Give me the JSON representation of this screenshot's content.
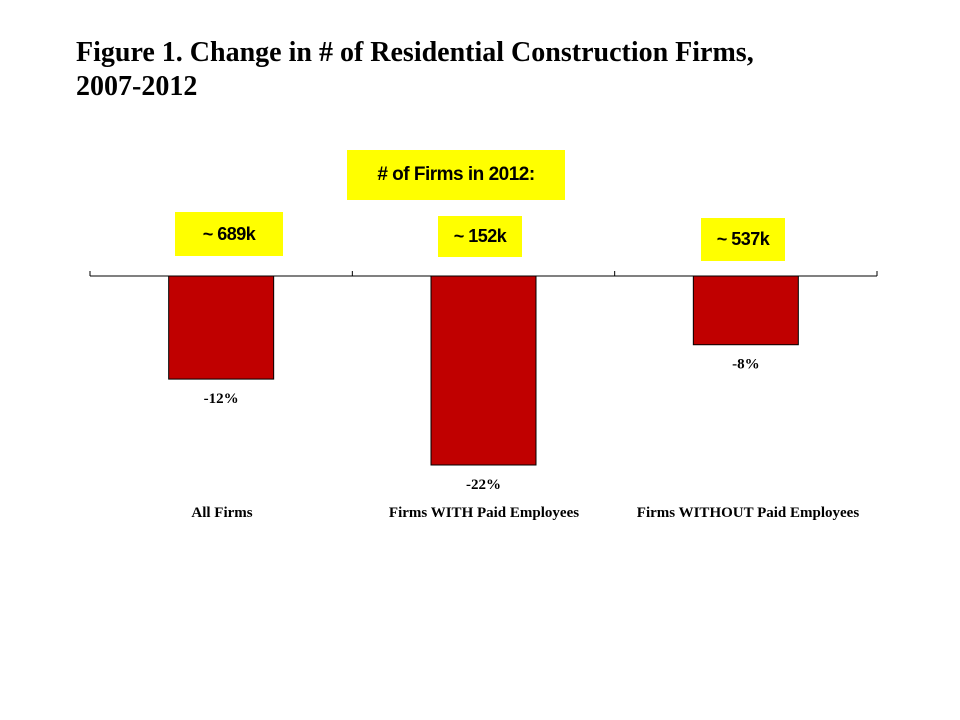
{
  "title_line1": "Figure 1.  Change in # of Residential Construction Firms,",
  "title_line2": "2007-2012",
  "callouts": {
    "header": "# of Firms in 2012:",
    "values": [
      "~ 689k",
      "~ 152k",
      "~ 537k"
    ]
  },
  "colors": {
    "bar": "#c00000",
    "callout": "#ffff00"
  },
  "chart_data": {
    "type": "bar",
    "categories": [
      "All Firms",
      "Firms WITH Paid Employees",
      "Firms WITHOUT Paid Employees"
    ],
    "values": [
      -12,
      -22,
      -8
    ],
    "data_labels": [
      "-12%",
      "-22%",
      "-8%"
    ],
    "units": "%",
    "ylim": [
      -22,
      0
    ],
    "title": "Figure 1.  Change in # of Residential Construction Firms, 2007-2012",
    "xlabel": "",
    "ylabel": "",
    "grid": false,
    "legend": "none"
  }
}
